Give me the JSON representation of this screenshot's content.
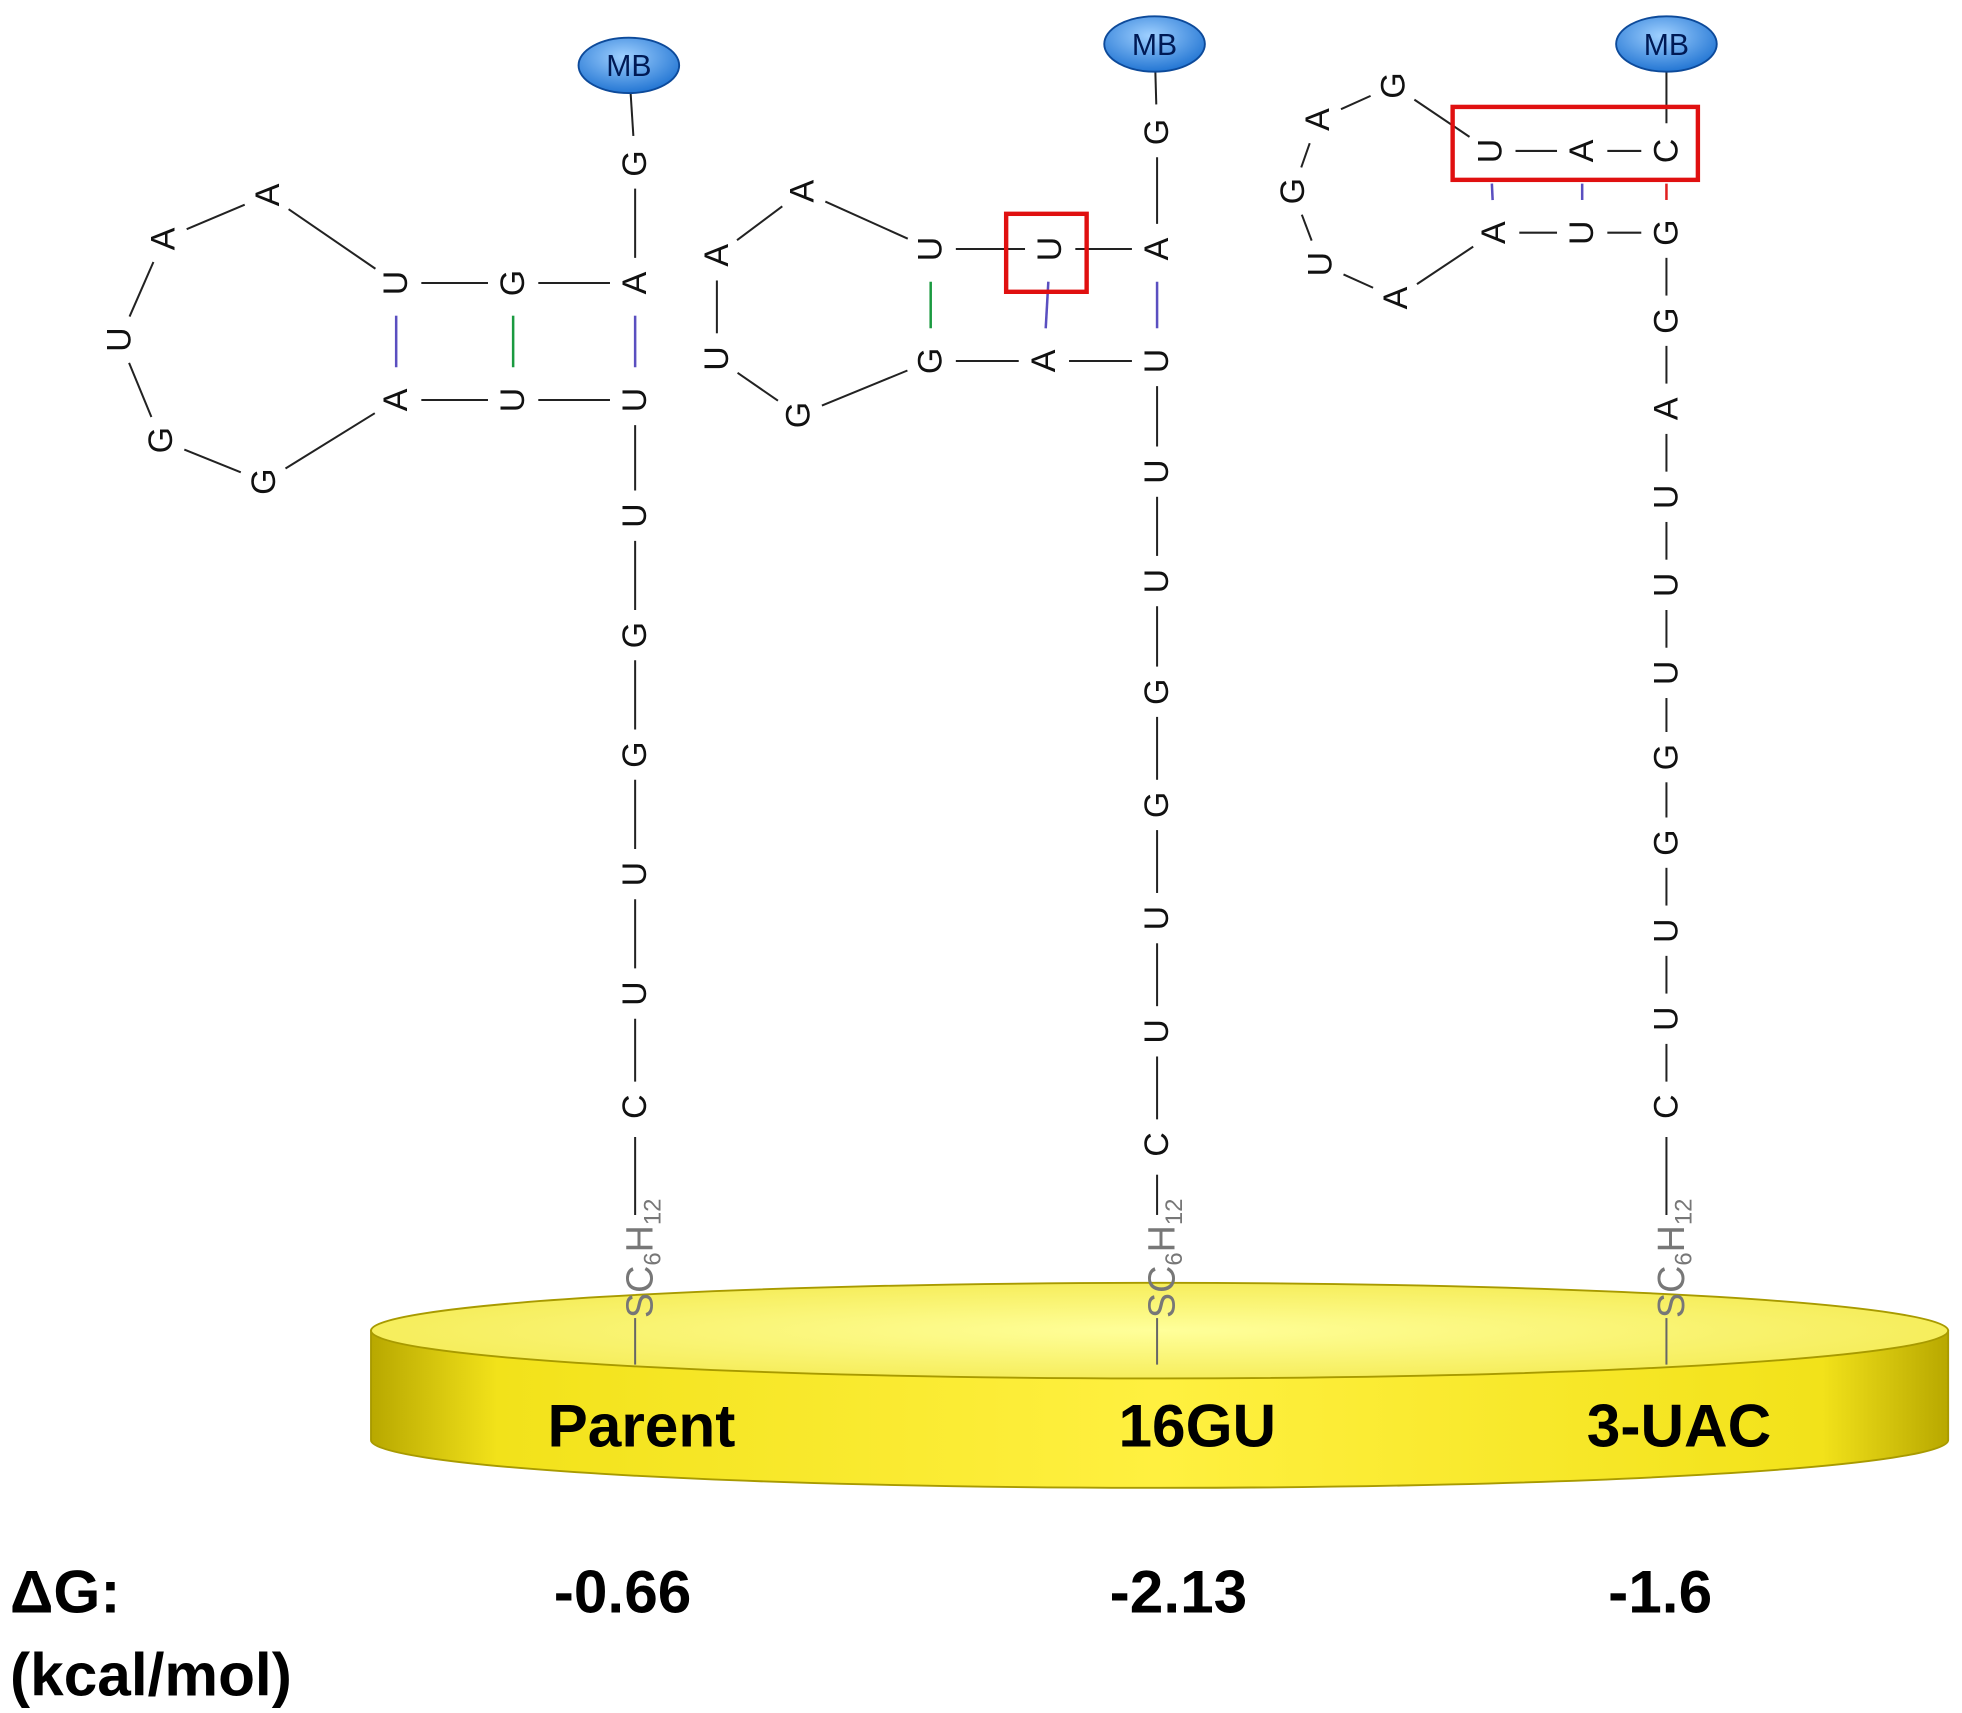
{
  "molecules": [
    {
      "name": "Parent",
      "label": "MB",
      "linker": [
        "SC",
        "6",
        "H",
        "12"
      ],
      "delta_g": "-0.66",
      "nucleotides": [
        "G",
        "A",
        "G",
        "U",
        "A",
        "A",
        "U",
        "G",
        "G",
        "A",
        "U",
        "U",
        "U",
        "G",
        "G",
        "U",
        "U",
        "C"
      ]
    },
    {
      "name": "16GU",
      "label": "MB",
      "linker": [
        "SC",
        "6",
        "H",
        "12"
      ],
      "delta_g": "-2.13",
      "nucleotides": [
        "G",
        "A",
        "U",
        "U",
        "A",
        "A",
        "U",
        "G",
        "G",
        "A",
        "U",
        "U",
        "U",
        "G",
        "G",
        "U",
        "U",
        "C"
      ]
    },
    {
      "name": "3-UAC",
      "label": "MB",
      "linker": [
        "SC",
        "6",
        "H",
        "12"
      ],
      "delta_g": "-1.6",
      "nucleotides": [
        "C",
        "A",
        "U",
        "G",
        "A",
        "G",
        "U",
        "A",
        "A",
        "U",
        "G",
        "G",
        "A",
        "U",
        "U",
        "U",
        "G",
        "G",
        "U",
        "U",
        "C"
      ]
    }
  ],
  "delta_g_label": "ΔG:",
  "delta_g_unit": "(kcal/mol)"
}
